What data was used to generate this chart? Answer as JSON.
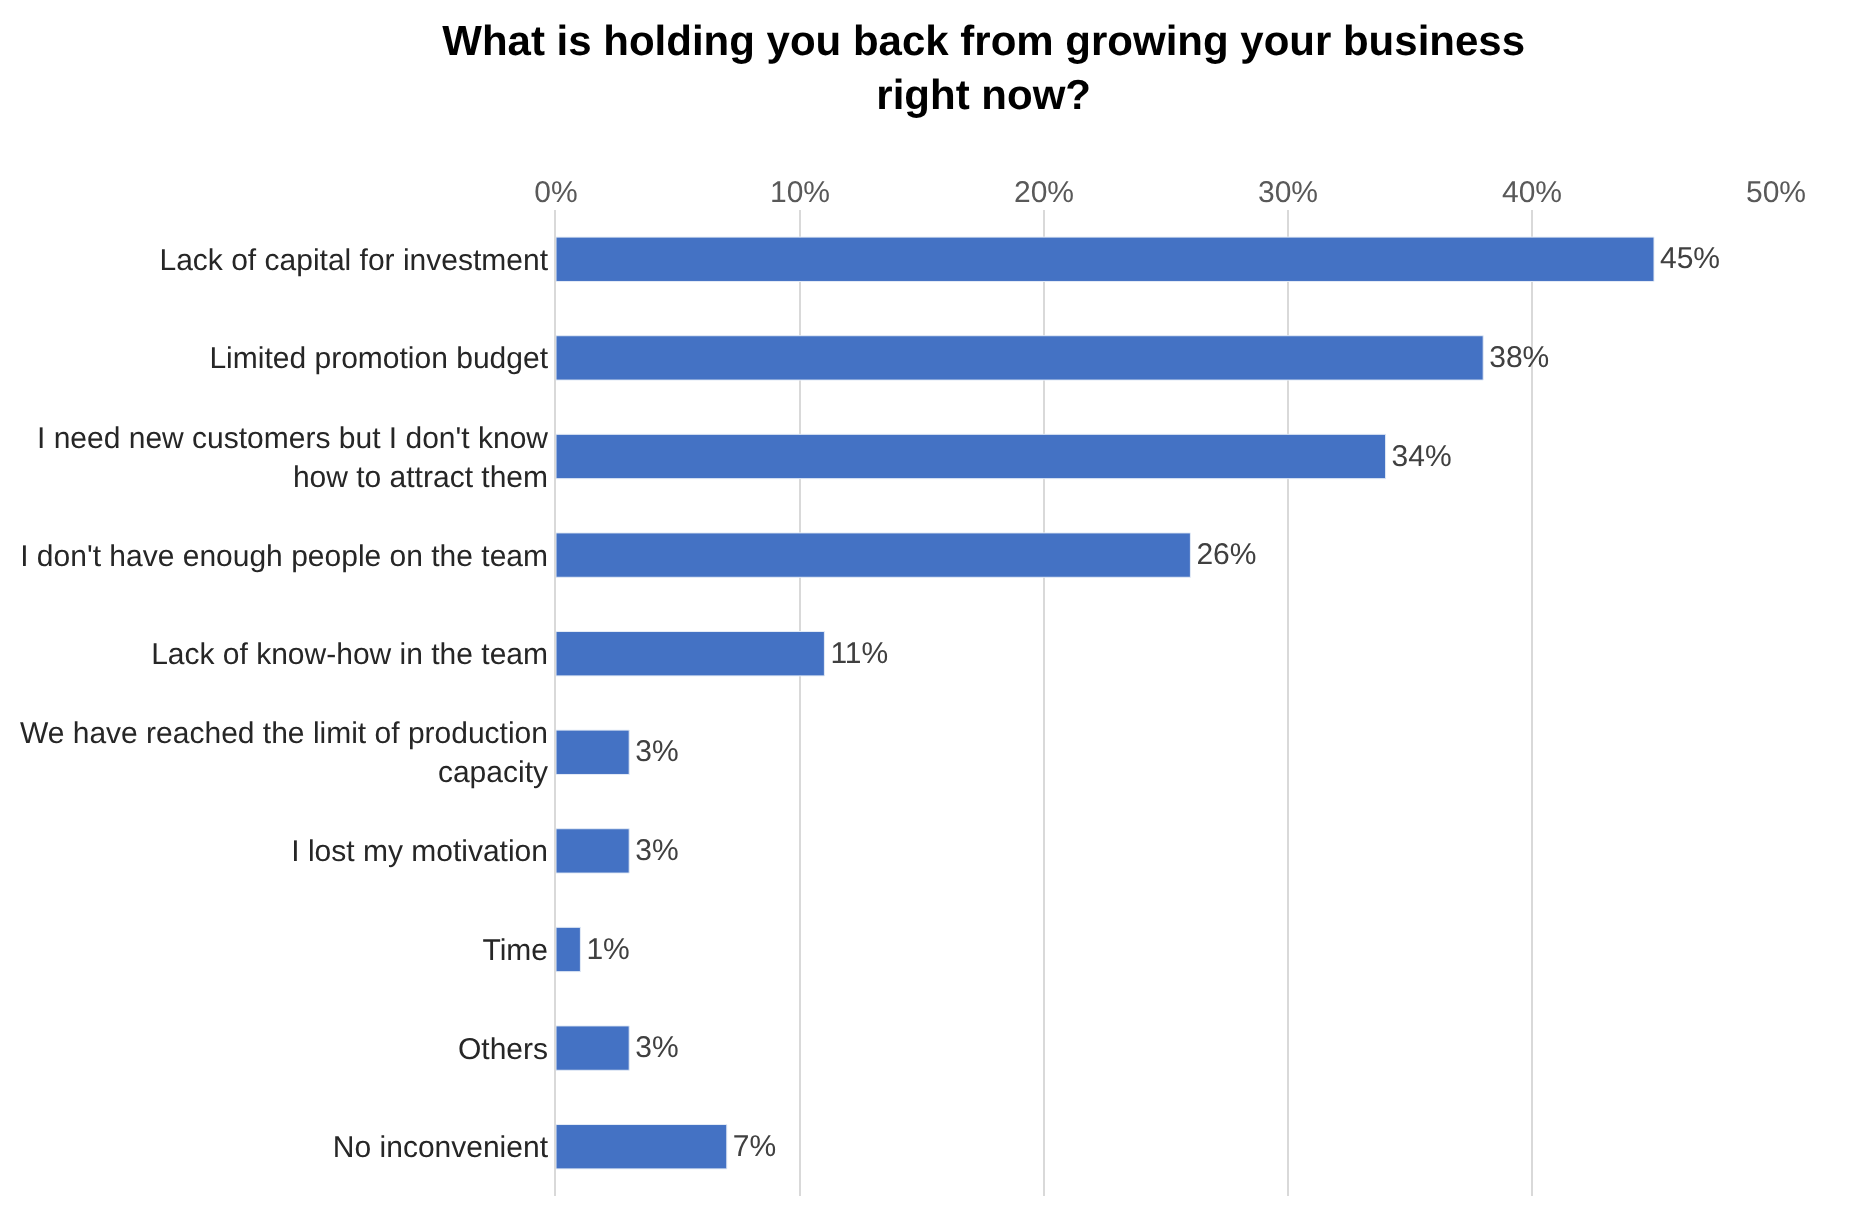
{
  "chart_data": {
    "type": "bar",
    "orientation": "horizontal",
    "title": "What is holding you back from growing your business right now?",
    "categories": [
      "Lack of capital for investment",
      "Limited promotion budget",
      "I need new customers but I don't know how to attract them",
      "I don't have enough people on the team",
      "Lack of know-how in the team",
      "We have reached the limit of production capacity",
      "I lost my motivation",
      "Time",
      "Others",
      "No inconvenient"
    ],
    "values": [
      45,
      38,
      34,
      26,
      11,
      3,
      3,
      1,
      3,
      7
    ],
    "value_labels": [
      "45%",
      "38%",
      "34%",
      "26%",
      "11%",
      "3%",
      "3%",
      "1%",
      "3%",
      "7%"
    ],
    "color": "#4472c4",
    "xlim": [
      0,
      50
    ],
    "xticks": [
      {
        "value": 0,
        "label": "0%"
      },
      {
        "value": 10,
        "label": "10%"
      },
      {
        "value": 20,
        "label": "20%"
      },
      {
        "value": 30,
        "label": "30%"
      },
      {
        "value": 40,
        "label": "40%"
      },
      {
        "value": 50,
        "label": "50%"
      }
    ],
    "grid": "x",
    "legend": false
  }
}
